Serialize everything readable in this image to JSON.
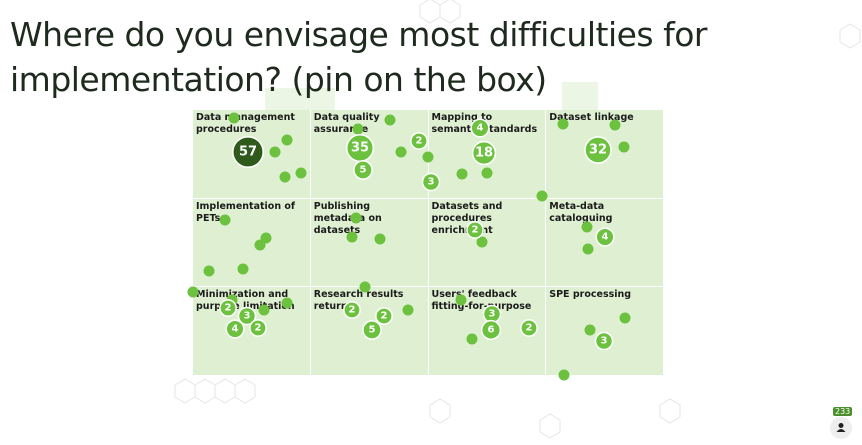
{
  "title": "Where do you envisage most difficulties for implementation? (pin on the box)",
  "boxes": [
    {
      "label": "Data management procedures",
      "pins": [
        57
      ]
    },
    {
      "label": "Data quality assurance",
      "pins": [
        35,
        2,
        5
      ]
    },
    {
      "label": "Mapping to semantic standards",
      "pins": [
        4,
        18,
        3
      ]
    },
    {
      "label": "Dataset linkage",
      "pins": [
        32
      ]
    },
    {
      "label": "Implementation of PETs",
      "pins": []
    },
    {
      "label": "Publishing metadata on datasets",
      "pins": []
    },
    {
      "label": "Datasets and procedures enrichment",
      "pins": [
        2
      ]
    },
    {
      "label": "Meta-data cataloguing",
      "pins": [
        4
      ]
    },
    {
      "label": "Minimization and purpose limitation",
      "pins": [
        2,
        3,
        4,
        2
      ]
    },
    {
      "label": "Research results return",
      "pins": [
        2,
        2,
        5
      ]
    },
    {
      "label": "Users' feedback fitting-for-purpose",
      "pins": [
        3,
        6,
        2
      ]
    },
    {
      "label": "SPE processing",
      "pins": [
        3
      ]
    }
  ],
  "participants": 233
}
